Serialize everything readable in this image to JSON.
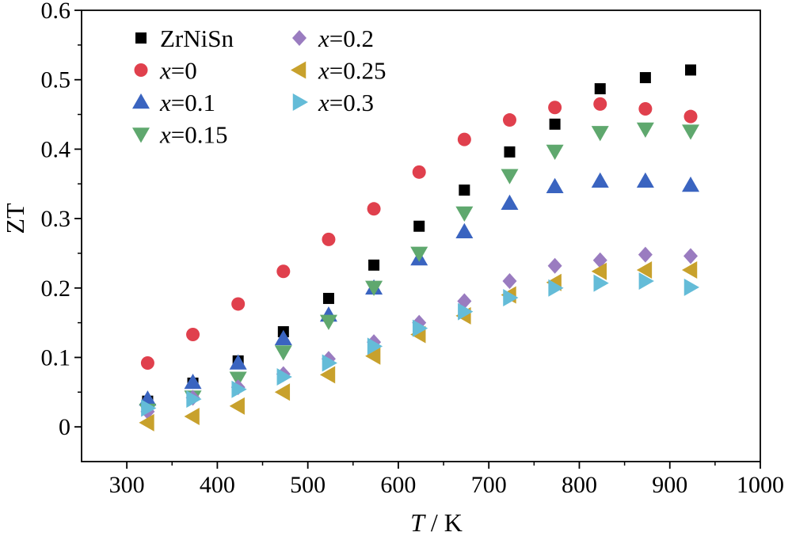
{
  "chart_data": {
    "type": "scatter",
    "xlabel_var": "T",
    "xlabel_rest": " / K",
    "ylabel": "ZT",
    "xlim": [
      250,
      1000
    ],
    "ylim": [
      -0.05,
      0.6
    ],
    "xticks": [
      300,
      400,
      500,
      600,
      700,
      800,
      900,
      1000
    ],
    "yticks": [
      0,
      0.1,
      0.2,
      0.3,
      0.4,
      0.5,
      0.6
    ],
    "ytick_labels": [
      "0",
      "0.1",
      "0.2",
      "0.3",
      "0.4",
      "0.5",
      "0.6"
    ],
    "grid": false,
    "legend_position": "top-left",
    "series": [
      {
        "name": "ZrNiSn",
        "var": "",
        "rest": "ZrNiSn",
        "marker": "square",
        "color": "#000000",
        "x": [
          323,
          373,
          423,
          473,
          523,
          573,
          623,
          673,
          723,
          773,
          823,
          873,
          923
        ],
        "y": [
          0.037,
          0.063,
          0.095,
          0.137,
          0.185,
          0.233,
          0.289,
          0.341,
          0.396,
          0.436,
          0.487,
          0.503,
          0.514
        ]
      },
      {
        "name": "x=0",
        "var": "x",
        "rest": "=0",
        "marker": "circle",
        "color": "#e0404d",
        "x": [
          323,
          373,
          423,
          473,
          523,
          573,
          623,
          673,
          723,
          773,
          823,
          873,
          923
        ],
        "y": [
          0.092,
          0.133,
          0.177,
          0.224,
          0.27,
          0.314,
          0.367,
          0.414,
          0.442,
          0.46,
          0.465,
          0.458,
          0.447
        ]
      },
      {
        "name": "x=0.1",
        "var": "x",
        "rest": "=0.1",
        "marker": "triangle-up",
        "color": "#3a64c0",
        "x": [
          323,
          373,
          423,
          473,
          523,
          573,
          623,
          673,
          723,
          773,
          823,
          873,
          923
        ],
        "y": [
          0.04,
          0.064,
          0.092,
          0.127,
          0.161,
          0.2,
          0.242,
          0.281,
          0.322,
          0.346,
          0.354,
          0.354,
          0.348
        ]
      },
      {
        "name": "x=0.15",
        "var": "x",
        "rest": "=0.15",
        "marker": "triangle-down",
        "color": "#5fa86e",
        "x": [
          323,
          373,
          423,
          473,
          523,
          573,
          623,
          673,
          723,
          773,
          823,
          873,
          923
        ],
        "y": [
          0.024,
          0.043,
          0.07,
          0.108,
          0.152,
          0.201,
          0.25,
          0.308,
          0.362,
          0.397,
          0.424,
          0.429,
          0.426
        ]
      },
      {
        "name": "x=0.2",
        "var": "x",
        "rest": "=0.2",
        "marker": "diamond",
        "color": "#9a7cc0",
        "x": [
          323,
          373,
          423,
          473,
          523,
          573,
          623,
          673,
          723,
          773,
          823,
          873,
          923
        ],
        "y": [
          0.022,
          0.042,
          0.057,
          0.076,
          0.098,
          0.122,
          0.15,
          0.181,
          0.21,
          0.232,
          0.24,
          0.248,
          0.246
        ]
      },
      {
        "name": "x=0.25",
        "var": "x",
        "rest": "=0.25",
        "marker": "triangle-left",
        "color": "#c8a12c",
        "x": [
          323,
          373,
          423,
          473,
          523,
          573,
          623,
          673,
          723,
          773,
          823,
          873,
          923
        ],
        "y": [
          0.006,
          0.015,
          0.03,
          0.05,
          0.075,
          0.102,
          0.133,
          0.16,
          0.19,
          0.208,
          0.224,
          0.226,
          0.226
        ]
      },
      {
        "name": "x=0.3",
        "var": "x",
        "rest": "=0.3",
        "marker": "triangle-right",
        "color": "#64bcd8",
        "x": [
          323,
          373,
          423,
          473,
          523,
          573,
          623,
          673,
          723,
          773,
          823,
          873,
          923
        ],
        "y": [
          0.027,
          0.04,
          0.054,
          0.072,
          0.092,
          0.116,
          0.142,
          0.166,
          0.186,
          0.2,
          0.207,
          0.21,
          0.201
        ]
      }
    ]
  }
}
